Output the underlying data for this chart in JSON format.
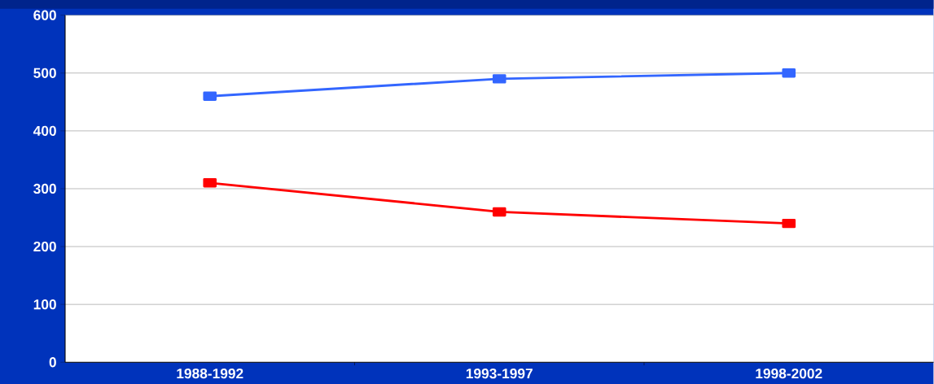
{
  "chart_data": {
    "type": "line",
    "categories": [
      "1988-1992",
      "1993-1997",
      "1998-2002"
    ],
    "series": [
      {
        "color": "#3366ff",
        "values": [
          460,
          490,
          500
        ]
      },
      {
        "color": "#ff0000",
        "values": [
          310,
          260,
          240
        ]
      }
    ],
    "ylim": [
      0,
      600
    ],
    "yticks": [
      0,
      100,
      200,
      300,
      400,
      500,
      600
    ],
    "grid": "y",
    "marker": "square",
    "line_style": "solid"
  }
}
